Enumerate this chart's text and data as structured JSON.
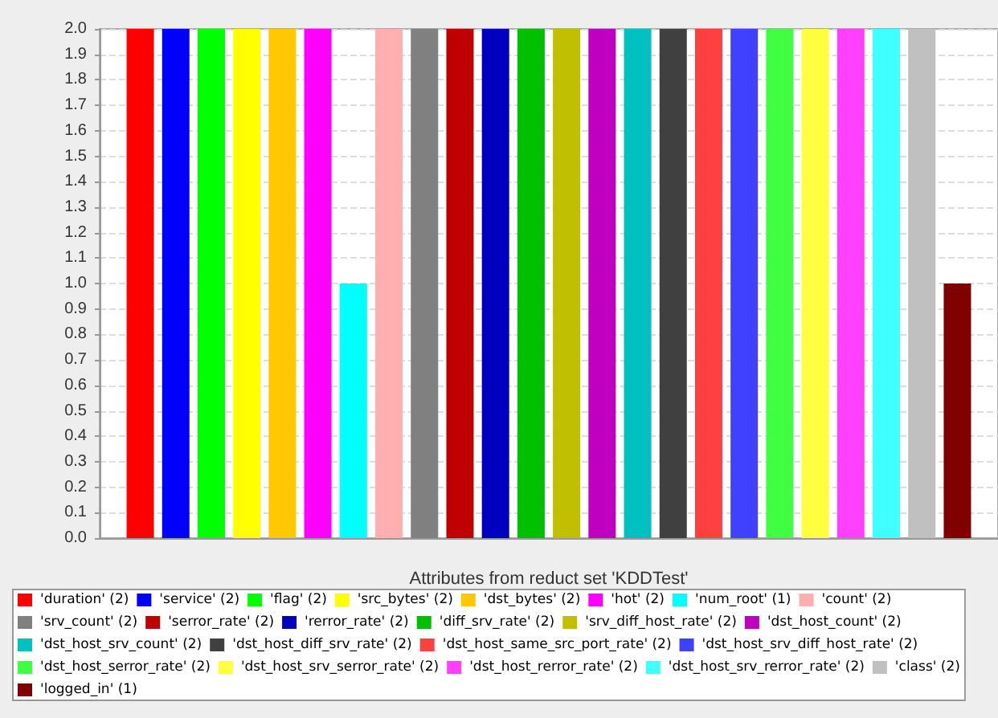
{
  "chart_data": {
    "type": "bar",
    "xlabel": "Attributes from reduct set 'KDDTest'",
    "categories": [
      null
    ],
    "ylim": [
      0,
      2
    ],
    "yticks": [
      {
        "value": 0,
        "label": "0.0"
      },
      0.1,
      0.2,
      0.3,
      0.4,
      0.5,
      0.6,
      0.7,
      0.8,
      0.9,
      {
        "value": 1,
        "label": "1.0"
      },
      1.1,
      1.2,
      1.3,
      1.4,
      1.5,
      1.6,
      1.7,
      1.8,
      1.9,
      {
        "value": 2,
        "label": "2.0"
      }
    ],
    "grid": "y",
    "legend": "bottom",
    "series": [
      {
        "name": "'duration' (2)",
        "color": "#ff0000",
        "values": [
          2
        ]
      },
      {
        "name": "'service' (2)",
        "color": "#0000ff",
        "values": [
          2
        ]
      },
      {
        "name": "'flag' (2)",
        "color": "#00ff00",
        "values": [
          2
        ]
      },
      {
        "name": "'src_bytes' (2)",
        "color": "#ffff00",
        "values": [
          2
        ]
      },
      {
        "name": "'dst_bytes' (2)",
        "color": "#ffc800",
        "values": [
          2
        ]
      },
      {
        "name": "'hot' (2)",
        "color": "#ff00ff",
        "values": [
          2
        ]
      },
      {
        "name": "'num_root' (1)",
        "color": "#00ffff",
        "values": [
          1
        ]
      },
      {
        "name": "'count' (2)",
        "color": "#ffafaf",
        "values": [
          2
        ]
      },
      {
        "name": "'srv_count' (2)",
        "color": "#808080",
        "values": [
          2
        ]
      },
      {
        "name": "'serror_rate' (2)",
        "color": "#c00000",
        "values": [
          2
        ]
      },
      {
        "name": "'rerror_rate' (2)",
        "color": "#0000c0",
        "values": [
          2
        ]
      },
      {
        "name": "'diff_srv_rate' (2)",
        "color": "#00c000",
        "values": [
          2
        ]
      },
      {
        "name": "'srv_diff_host_rate' (2)",
        "color": "#c0c000",
        "values": [
          2
        ]
      },
      {
        "name": "'dst_host_count' (2)",
        "color": "#c000c0",
        "values": [
          2
        ]
      },
      {
        "name": "'dst_host_srv_count' (2)",
        "color": "#00c0c0",
        "values": [
          2
        ]
      },
      {
        "name": "'dst_host_diff_srv_rate' (2)",
        "color": "#404040",
        "values": [
          2
        ]
      },
      {
        "name": "'dst_host_same_src_port_rate' (2)",
        "color": "#ff4040",
        "values": [
          2
        ]
      },
      {
        "name": "'dst_host_srv_diff_host_rate' (2)",
        "color": "#4040ff",
        "values": [
          2
        ]
      },
      {
        "name": "'dst_host_serror_rate' (2)",
        "color": "#40ff40",
        "values": [
          2
        ]
      },
      {
        "name": "'dst_host_srv_serror_rate' (2)",
        "color": "#ffff40",
        "values": [
          2
        ]
      },
      {
        "name": "'dst_host_rerror_rate' (2)",
        "color": "#ff40ff",
        "values": [
          2
        ]
      },
      {
        "name": "'dst_host_srv_rerror_rate' (2)",
        "color": "#40ffff",
        "values": [
          2
        ]
      },
      {
        "name": "'class' (2)",
        "color": "#c0c0c0",
        "values": [
          2
        ]
      },
      {
        "name": "'logged_in' (1)",
        "color": "#800000",
        "values": [
          1
        ]
      }
    ]
  }
}
